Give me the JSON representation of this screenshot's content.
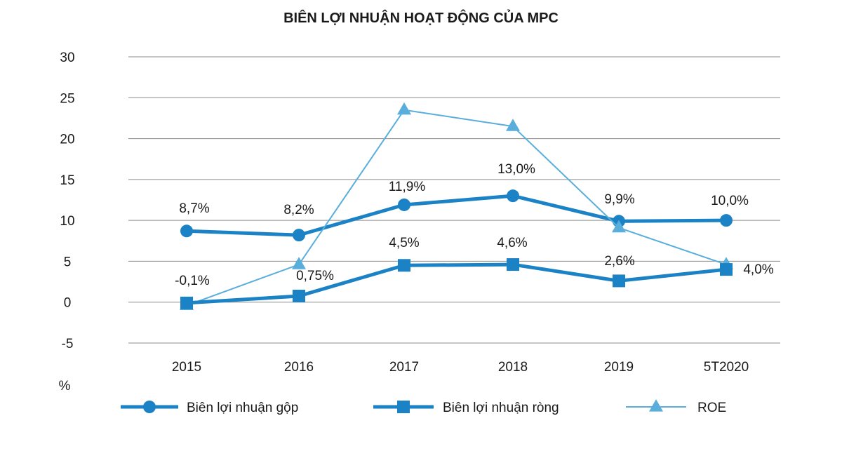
{
  "chart_data": {
    "type": "line",
    "title": "BIÊN LỢI NHUẬN HOẠT ĐỘNG CỦA MPC",
    "xlabel": "",
    "ylabel": "%",
    "ylim": [
      -5,
      30
    ],
    "yticks": [
      30,
      25,
      20,
      15,
      10,
      5,
      0,
      -5
    ],
    "ytick_labels": [
      "30",
      "25",
      "20",
      "15",
      "10",
      "5",
      "0",
      "-5"
    ],
    "categories": [
      "2015",
      "2016",
      "2017",
      "2018",
      "2019",
      "5T2020"
    ],
    "grid": true,
    "legend_position": "bottom",
    "colors": {
      "gross": "#1b82c5",
      "net": "#1b82c5",
      "roe": "#5aaedb",
      "grid": "#8c8c8c",
      "text": "#1a1a1a"
    },
    "series": [
      {
        "key": "gross",
        "name": "Biên lợi nhuận gộp",
        "marker": "circle",
        "values": [
          8.7,
          8.2,
          11.9,
          13.0,
          9.9,
          10.0
        ],
        "labels": [
          "8,7%",
          "8,2%",
          "11,9%",
          "13,0%",
          "9,9%",
          "10,0%"
        ]
      },
      {
        "key": "net",
        "name": "Biên lợi nhuận ròng",
        "marker": "square",
        "values": [
          -0.1,
          0.75,
          4.5,
          4.6,
          2.6,
          4.0
        ],
        "labels": [
          "-0,1%",
          "0,75%",
          "4,5%",
          "4,6%",
          "2,6%",
          "4,0%"
        ]
      },
      {
        "key": "roe",
        "name": "ROE",
        "marker": "triangle",
        "values": [
          -0.4,
          4.6,
          23.5,
          21.5,
          9.1,
          4.6
        ],
        "labels": []
      }
    ]
  }
}
